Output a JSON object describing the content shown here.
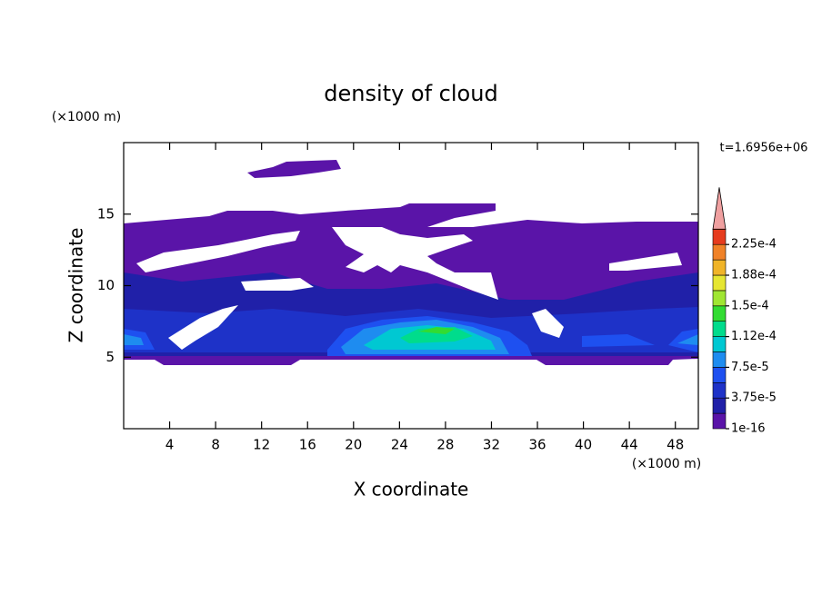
{
  "chart_data": {
    "type": "contour",
    "title": "density of cloud",
    "x_label": "X coordinate",
    "y_label": "Z coordinate",
    "x_unit": "(×1000 m)",
    "y_unit": "(×1000 m)",
    "time_label": "t=1.6956e+06",
    "xlim": [
      0,
      50
    ],
    "ylim": [
      0,
      20
    ],
    "xticks": [
      4,
      8,
      12,
      16,
      20,
      24,
      28,
      32,
      36,
      40,
      44,
      48
    ],
    "yticks": [
      5,
      10,
      15
    ],
    "colorbar": {
      "levels": [
        {
          "value": 1e-16,
          "label": "1e-16"
        },
        1.875e-05,
        {
          "value": 3.75e-05,
          "label": "3.75e-5"
        },
        5.625e-05,
        {
          "value": 7.5e-05,
          "label": "7.5e-5"
        },
        9.375e-05,
        {
          "value": 0.0001125,
          "label": "1.12e-4"
        },
        0.00013125,
        {
          "value": 0.00015,
          "label": "1.5e-4"
        },
        0.00016875,
        {
          "value": 0.0001875,
          "label": "1.88e-4"
        },
        0.00020625,
        {
          "value": 0.000225,
          "label": "2.25e-4"
        }
      ],
      "colors": [
        "#5a14a8",
        "#2020a8",
        "#1e32c8",
        "#1e50f0",
        "#1e8cf0",
        "#00c8d2",
        "#00dc8c",
        "#32dc32",
        "#a0e632",
        "#e6e632",
        "#f0b428",
        "#f08228",
        "#e63c1e"
      ],
      "over_color": "#f0a0a0"
    }
  }
}
